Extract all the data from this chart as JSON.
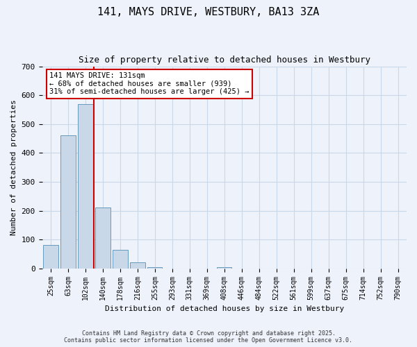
{
  "title": "141, MAYS DRIVE, WESTBURY, BA13 3ZA",
  "subtitle": "Size of property relative to detached houses in Westbury",
  "xlabel": "Distribution of detached houses by size in Westbury",
  "ylabel": "Number of detached properties",
  "footer_line1": "Contains HM Land Registry data © Crown copyright and database right 2025.",
  "footer_line2": "Contains public sector information licensed under the Open Government Licence v3.0.",
  "bar_categories": [
    "25sqm",
    "63sqm",
    "102sqm",
    "140sqm",
    "178sqm",
    "216sqm",
    "255sqm",
    "293sqm",
    "331sqm",
    "369sqm",
    "408sqm",
    "446sqm",
    "484sqm",
    "522sqm",
    "561sqm",
    "599sqm",
    "637sqm",
    "675sqm",
    "714sqm",
    "752sqm",
    "790sqm"
  ],
  "bar_values": [
    80,
    460,
    570,
    210,
    65,
    20,
    5,
    0,
    0,
    0,
    5,
    0,
    0,
    0,
    0,
    0,
    0,
    0,
    0,
    0,
    0
  ],
  "bar_color": "#c8d8e8",
  "bar_edge_color": "#6699bb",
  "grid_color": "#c8d8e8",
  "bg_color": "#eef2fb",
  "vline_color": "#cc0000",
  "vline_x": 2.5,
  "annotation_text": "141 MAYS DRIVE: 131sqm\n← 68% of detached houses are smaller (939)\n31% of semi-detached houses are larger (425) →",
  "annotation_box_color": "#ffffff",
  "annotation_box_edge": "#cc0000",
  "ylim": [
    0,
    700
  ],
  "yticks": [
    0,
    100,
    200,
    300,
    400,
    500,
    600,
    700
  ]
}
